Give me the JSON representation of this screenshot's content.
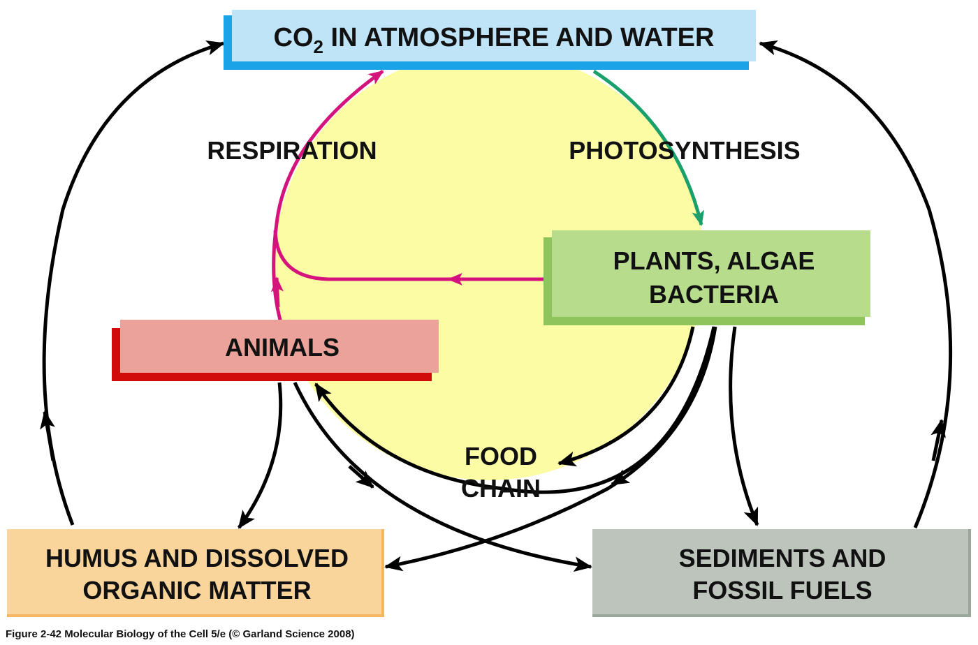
{
  "colors": {
    "cycle_circle": "#fcfca4",
    "respiration_arrow": "#d4147c",
    "photosynthesis_arrow": "#1aa06a",
    "flow_arrow": "#000000",
    "co2_box": "#bfe3f7",
    "co2_box_edge": "#1aa3e6",
    "plants_box": "#b7dc8c",
    "plants_box_edge": "#8fc45c",
    "animals_box": "#eaa29a",
    "animals_box_edge": "#d10a0a",
    "humus_box": "#f9d49b",
    "humus_box_edge": "#f3b661",
    "sediments_box": "#bcc4bc",
    "sediments_box_edge": "#9aa69a"
  },
  "boxes": {
    "co2": {
      "label_main": "CO",
      "label_sub": "2",
      "label_rest": " IN ATMOSPHERE AND WATER"
    },
    "plants": {
      "line1": "PLANTS, ALGAE",
      "line2": "BACTERIA"
    },
    "animals": {
      "label": "ANIMALS"
    },
    "humus": {
      "line1": "HUMUS AND DISSOLVED",
      "line2": "ORGANIC MATTER"
    },
    "sediments": {
      "line1": "SEDIMENTS AND",
      "line2": "FOSSIL FUELS"
    }
  },
  "labels": {
    "respiration": "RESPIRATION",
    "photosynthesis": "PHOTOSYNTHESIS",
    "food_chain_1": "FOOD",
    "food_chain_2": "CHAIN"
  },
  "caption": "Figure 2-42  Molecular Biology of the Cell 5/e (© Garland Science 2008)"
}
